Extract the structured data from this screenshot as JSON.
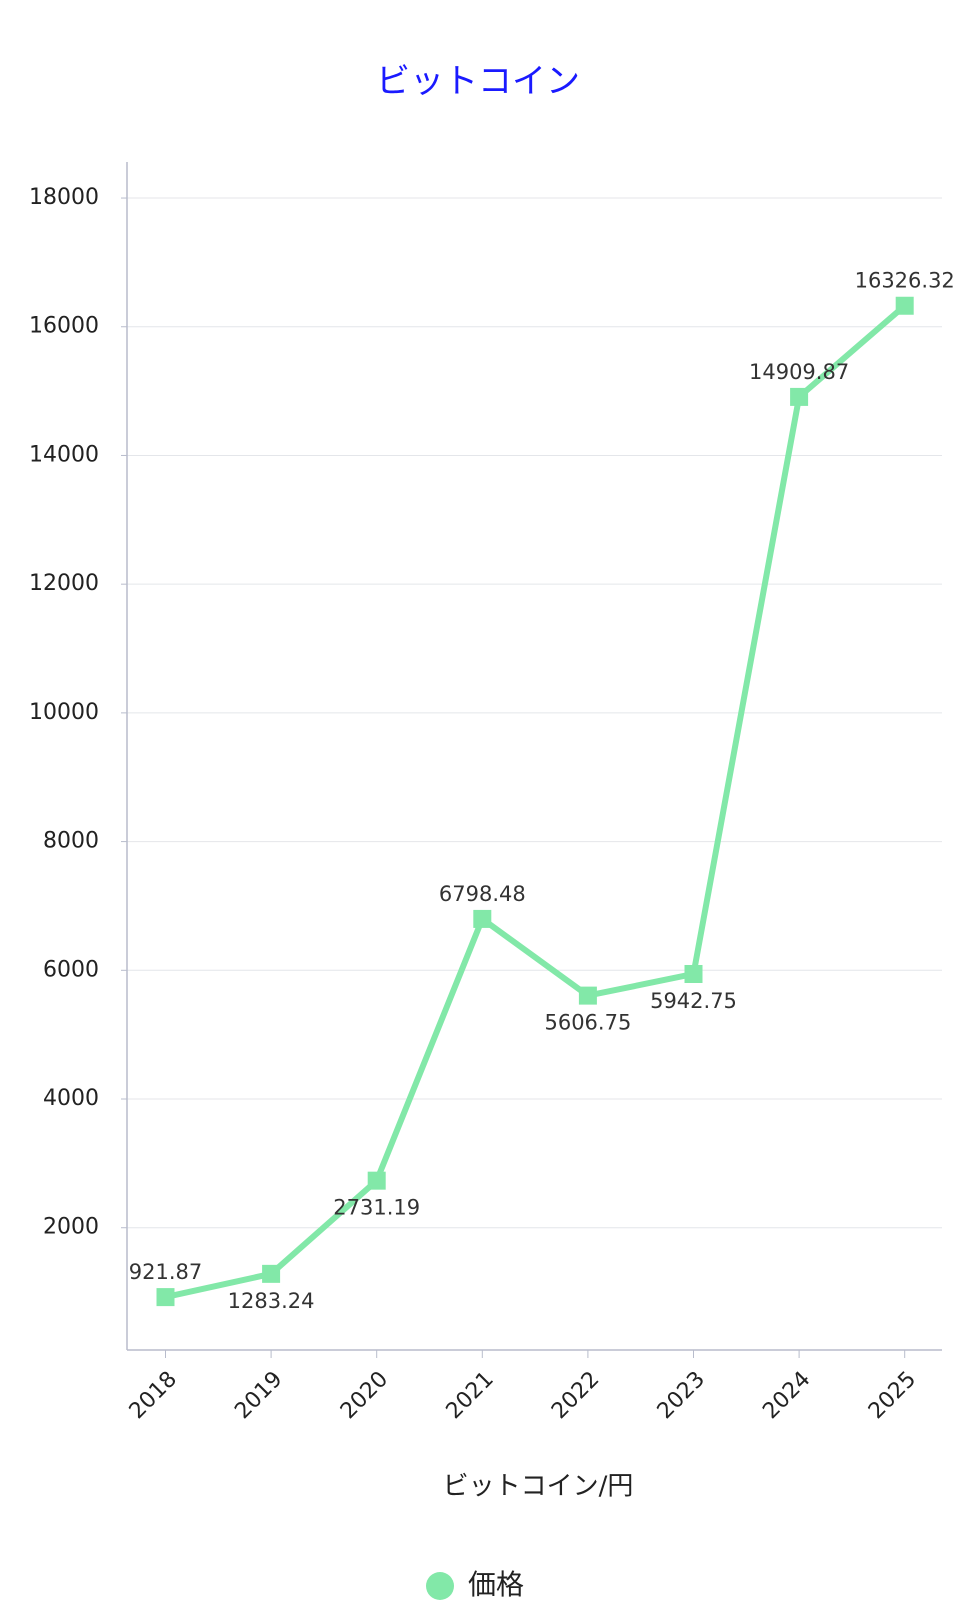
{
  "chart_data": {
    "type": "line",
    "title": "ビットコイン",
    "x_label": "ビットコイン/円",
    "categories": [
      "2018",
      "2019",
      "2020",
      "2021",
      "2022",
      "2023",
      "2024",
      "2025"
    ],
    "series": [
      {
        "name": "価格",
        "color": "#82e8a8",
        "values": [
          921.87,
          1283.24,
          2731.19,
          6798.48,
          5606.75,
          5942.75,
          14909.87,
          16326.32
        ]
      }
    ],
    "ylim": [
      100,
      18560
    ],
    "yticks": [
      2000,
      4000,
      6000,
      8000,
      10000,
      12000,
      14000,
      16000,
      18000
    ],
    "grid": true,
    "legend": "bottom"
  }
}
